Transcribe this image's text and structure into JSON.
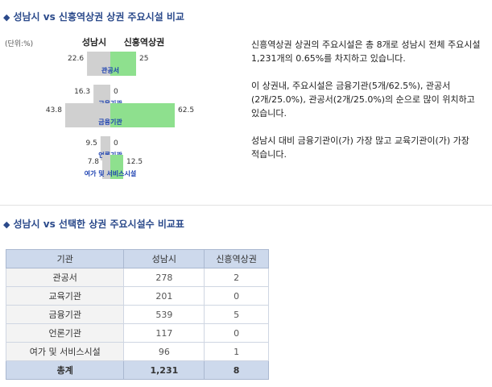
{
  "section1": {
    "title": "성남시 vs 신흥역상권 상권 주요시설 비교"
  },
  "section2": {
    "title": "성남시 vs 선택한 상권 주요시설수 비교표"
  },
  "chart_data": {
    "type": "bar",
    "unit_label": "(단위:%)",
    "categories": [
      "관공서",
      "교육기관",
      "금융기관",
      "언론기관",
      "여가 및 서비스시설"
    ],
    "series": [
      {
        "name": "성남시",
        "values": [
          22.6,
          16.3,
          43.8,
          9.5,
          7.8
        ],
        "value_labels": [
          "22.6",
          "16.3",
          "43.8",
          "9.5",
          "7.8"
        ],
        "color": "#d0d0d0"
      },
      {
        "name": "신흥역상권",
        "values": [
          25,
          0,
          62.5,
          0,
          12.5
        ],
        "value_labels": [
          "25",
          "0",
          "62.5",
          "0",
          "12.5"
        ],
        "color": "#8ee08e"
      }
    ],
    "label_color": "#1a3fb0"
  },
  "description": {
    "p1": "신흥역상권 상권의 주요시설은 총 8개로 성남시 전체 주요시설 1,231개의 0.65%를 차지하고 있습니다.",
    "p2": "이 상권내, 주요시설은 금융기관(5개/62.5%), 관공서(2개/25.0%), 관공서(2개/25.0%)의 순으로 많이 위치하고 있습니다.",
    "p3": "성남시 대비 금융기관이(가) 가장 많고 교육기관이(가) 가장 적습니다."
  },
  "table": {
    "headers": [
      "기관",
      "성남시",
      "신흥역상권"
    ],
    "rows": [
      [
        "관공서",
        "278",
        "2"
      ],
      [
        "교육기관",
        "201",
        "0"
      ],
      [
        "금융기관",
        "539",
        "5"
      ],
      [
        "언론기관",
        "117",
        "0"
      ],
      [
        "여가 및 서비스시설",
        "96",
        "1"
      ]
    ],
    "total": [
      "총계",
      "1,231",
      "8"
    ]
  }
}
